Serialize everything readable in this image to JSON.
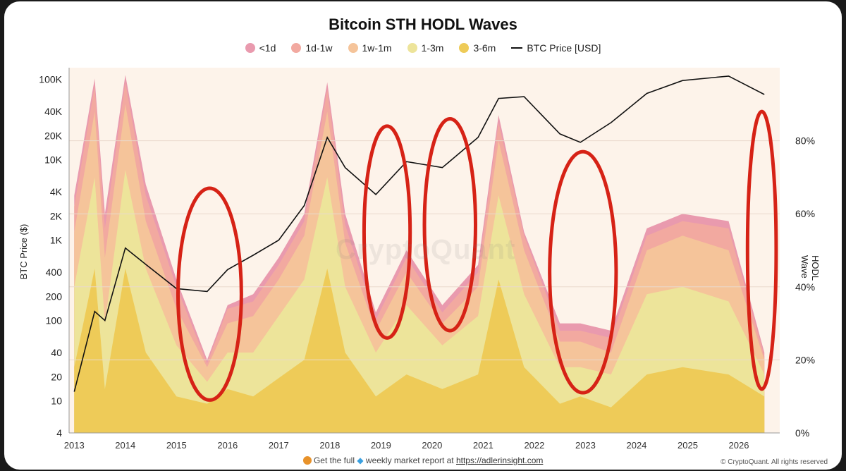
{
  "chart_data": {
    "type": "area",
    "title": "Bitcoin STH HODL Waves",
    "ylabel_left": "BTC Price ($)",
    "ylabel_right": "HODL Wave",
    "y_left_scale": "log",
    "y_left_ticks": [
      "100K",
      "40K",
      "20K",
      "10K",
      "4K",
      "2K",
      "1K",
      "400",
      "200",
      "100",
      "40",
      "20",
      "10",
      "4"
    ],
    "y_right_ticks": [
      "80%",
      "60%",
      "40%",
      "20%",
      "0%"
    ],
    "y_right_range": [
      0,
      100
    ],
    "x_ticks": [
      "2013",
      "2014",
      "2015",
      "2016",
      "2017",
      "2018",
      "2019",
      "2020",
      "2021",
      "2022",
      "2023",
      "2024",
      "2025",
      "2026"
    ],
    "legend_position": "top-center",
    "series": [
      {
        "name": "<1d",
        "color": "#e99aae"
      },
      {
        "name": "1d-1w",
        "color": "#f2a9a0"
      },
      {
        "name": "1w-1m",
        "color": "#f5c49a"
      },
      {
        "name": "1-3m",
        "color": "#ede49a"
      },
      {
        "name": "3-6m",
        "color": "#eecb58"
      }
    ],
    "line_series": {
      "name": "BTC Price [USD]",
      "color": "#111111"
    },
    "x": [
      2013.0,
      2013.4,
      2013.6,
      2014.0,
      2014.4,
      2015.0,
      2015.6,
      2016.0,
      2016.5,
      2017.0,
      2017.5,
      2017.95,
      2018.3,
      2018.9,
      2019.5,
      2020.2,
      2020.9,
      2021.3,
      2021.8,
      2022.5,
      2022.9,
      2023.5,
      2024.2,
      2024.9,
      2025.8,
      2026.5
    ],
    "btc_price": [
      13,
      130,
      100,
      800,
      500,
      250,
      230,
      430,
      650,
      1000,
      2700,
      19000,
      8000,
      3700,
      9500,
      8000,
      19000,
      58000,
      61000,
      21000,
      16500,
      29000,
      67000,
      97000,
      110000,
      65000
    ],
    "hodl_total_pct": [
      65,
      97,
      60,
      98,
      68,
      42,
      20,
      35,
      38,
      48,
      60,
      96,
      60,
      33,
      50,
      35,
      46,
      87,
      55,
      30,
      30,
      28,
      56,
      60,
      58,
      22
    ],
    "cumulative_pct": {
      "3-6m": [
        18,
        45,
        12,
        45,
        22,
        10,
        8,
        12,
        10,
        15,
        20,
        45,
        22,
        10,
        16,
        12,
        16,
        42,
        18,
        8,
        10,
        7,
        16,
        18,
        16,
        10
      ],
      "1-3m": [
        40,
        70,
        30,
        72,
        45,
        24,
        14,
        22,
        22,
        32,
        42,
        70,
        40,
        22,
        35,
        24,
        32,
        65,
        38,
        18,
        18,
        16,
        38,
        40,
        36,
        16
      ],
      "1w-1m": [
        55,
        88,
        48,
        90,
        58,
        34,
        18,
        30,
        32,
        42,
        54,
        88,
        52,
        28,
        44,
        30,
        40,
        80,
        50,
        25,
        25,
        22,
        50,
        54,
        50,
        20
      ],
      "1d-1w": [
        62,
        95,
        56,
        96,
        65,
        40,
        19,
        34,
        36,
        46,
        58,
        94,
        57,
        31,
        48,
        33,
        44,
        85,
        54,
        28,
        28,
        26,
        54,
        58,
        56,
        21
      ]
    },
    "annotations": [
      "red-ellipse-2015",
      "red-ellipse-2019",
      "red-ellipse-2020",
      "red-ellipse-2023",
      "red-ellipse-2026"
    ]
  },
  "watermark": "CryptoQuant",
  "footer": {
    "text": "Get the full",
    "text2": "weekly market report at",
    "link": "https://adlerinsight.com"
  },
  "copyright": "© CryptoQuant. All rights reserved"
}
